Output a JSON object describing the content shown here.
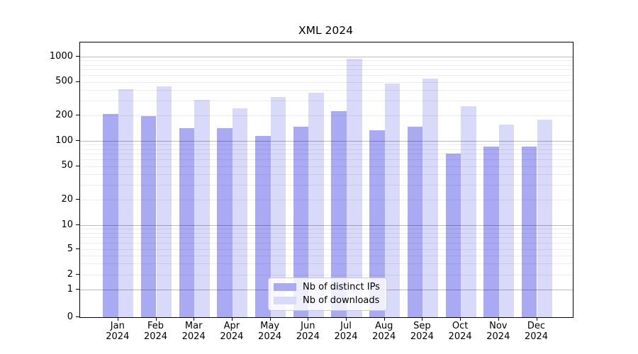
{
  "chart_data": {
    "type": "bar",
    "title": "XML 2024",
    "yscale": "symlog",
    "grid": true,
    "legend_position": "lower center",
    "x_tick_year": "2024",
    "months": [
      "Jan",
      "Feb",
      "Mar",
      "Apr",
      "May",
      "Jun",
      "Jul",
      "Aug",
      "Sep",
      "Oct",
      "Nov",
      "Dec"
    ],
    "yticks": [
      1000,
      500,
      200,
      100,
      50,
      20,
      10,
      5,
      2,
      1,
      0
    ],
    "ylim": [
      0,
      1470
    ],
    "series": [
      {
        "name": "Nb of distinct IPs",
        "color": "#a9a9f4",
        "values": [
          210,
          198,
          143,
          143,
          114,
          146,
          225,
          134,
          148,
          70,
          86,
          85
        ]
      },
      {
        "name": "Nb of downloads",
        "color": "#d9d9f9",
        "values": [
          410,
          440,
          305,
          245,
          335,
          370,
          950,
          480,
          545,
          258,
          155,
          180
        ]
      }
    ]
  }
}
